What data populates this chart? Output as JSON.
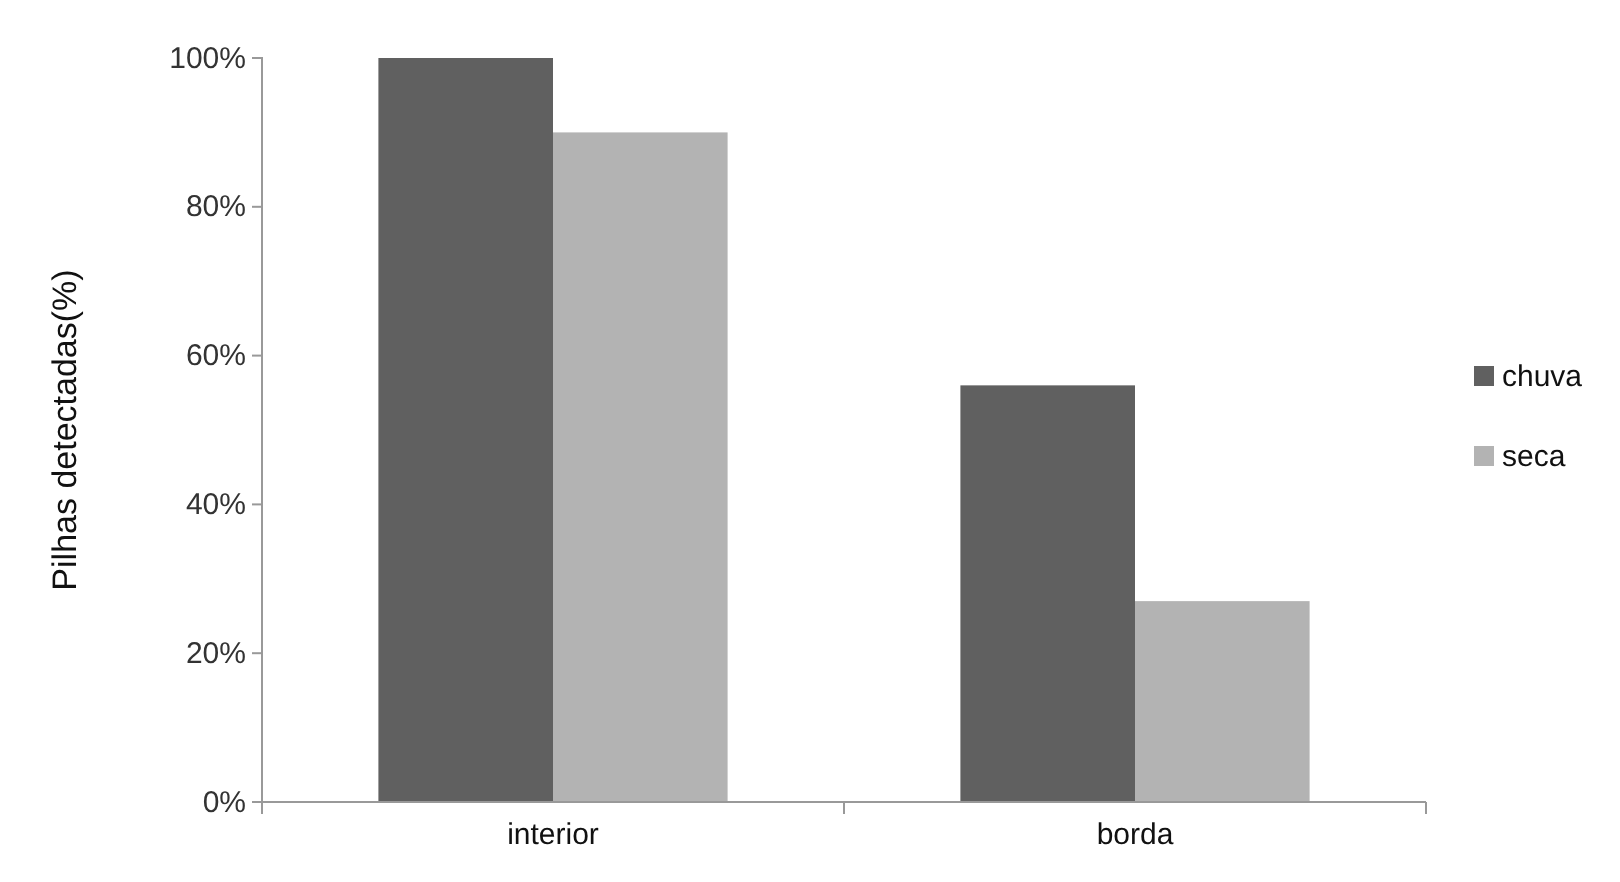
{
  "chart_data": {
    "type": "bar",
    "ylabel": "Pilhas detectadas(%)",
    "categories": [
      "interior",
      "borda"
    ],
    "series": [
      {
        "name": "chuva",
        "color": "#606060",
        "values": [
          100,
          56
        ]
      },
      {
        "name": "seca",
        "color": "#b3b3b3",
        "values": [
          90,
          27
        ]
      }
    ],
    "ylim": [
      0,
      100
    ],
    "yticks": [
      {
        "value": 0,
        "label": "0%"
      },
      {
        "value": 20,
        "label": "20%"
      },
      {
        "value": 40,
        "label": "40%"
      },
      {
        "value": 60,
        "label": "60%"
      },
      {
        "value": 80,
        "label": "80%"
      },
      {
        "value": 100,
        "label": "100%"
      }
    ],
    "grid": false,
    "legend": "right"
  }
}
